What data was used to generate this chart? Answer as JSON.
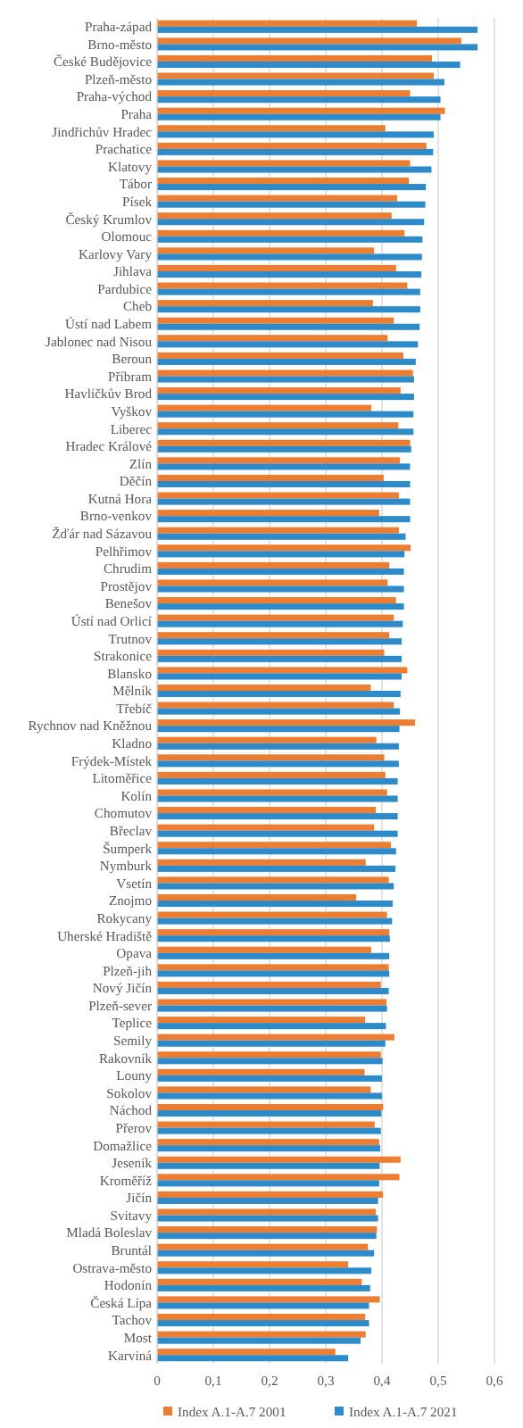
{
  "chart_data": {
    "type": "bar",
    "orientation": "horizontal",
    "categories": [
      "Praha-západ",
      "Brno-město",
      "České Budějovice",
      "Plzeň-město",
      "Praha-východ",
      "Praha",
      "Jindřichův Hradec",
      "Prachatice",
      "Klatovy",
      "Tábor",
      "Písek",
      "Český Krumlov",
      "Olomouc",
      "Karlovy Vary",
      "Jihlava",
      "Pardubice",
      "Cheb",
      "Ústí nad Labem",
      "Jablonec nad Nisou",
      "Beroun",
      "Příbram",
      "Havlíčkův Brod",
      "Vyškov",
      "Liberec",
      "Hradec Králové",
      "Zlín",
      "Děčín",
      "Kutná Hora",
      "Brno-venkov",
      "Žďár nad Sázavou",
      "Pelhřimov",
      "Chrudim",
      "Prostějov",
      "Benešov",
      "Ústí nad Orlicí",
      "Trutnov",
      "Strakonice",
      "Blansko",
      "Mělník",
      "Třebíč",
      "Rychnov nad Kněžnou",
      "Kladno",
      "Frýdek-Místek",
      "Litoměřice",
      "Kolín",
      "Chomutov",
      "Břeclav",
      "Šumperk",
      "Nymburk",
      "Vsetín",
      "Znojmo",
      "Rokycany",
      "Uherské Hradiště",
      "Opava",
      "Plzeň-jih",
      "Nový Jičín",
      "Plzeň-sever",
      "Teplice",
      "Semily",
      "Rakovník",
      "Louny",
      "Sokolov",
      "Náchod",
      "Přerov",
      "Domažlice",
      "Jeseník",
      "Kroměříž",
      "Jičín",
      "Svitavy",
      "Mladá Boleslav",
      "Bruntál",
      "Ostrava-město",
      "Hodonín",
      "Česká Lípa",
      "Tachov",
      "Most",
      "Karviná"
    ],
    "series": [
      {
        "name": "Index A.1-A.7 2001",
        "color": "#ed7d31",
        "values": [
          0.462,
          0.541,
          0.489,
          0.492,
          0.45,
          0.512,
          0.406,
          0.479,
          0.45,
          0.448,
          0.427,
          0.417,
          0.44,
          0.386,
          0.425,
          0.445,
          0.384,
          0.421,
          0.41,
          0.438,
          0.455,
          0.433,
          0.381,
          0.429,
          0.45,
          0.432,
          0.403,
          0.43,
          0.395,
          0.43,
          0.451,
          0.413,
          0.41,
          0.425,
          0.421,
          0.413,
          0.404,
          0.445,
          0.38,
          0.421,
          0.459,
          0.39,
          0.404,
          0.406,
          0.409,
          0.389,
          0.386,
          0.416,
          0.371,
          0.412,
          0.354,
          0.409,
          0.413,
          0.381,
          0.412,
          0.398,
          0.408,
          0.37,
          0.422,
          0.398,
          0.369,
          0.38,
          0.402,
          0.387,
          0.395,
          0.433,
          0.431,
          0.402,
          0.389,
          0.391,
          0.375,
          0.34,
          0.364,
          0.396,
          0.37,
          0.371,
          0.317
        ]
      },
      {
        "name": "Index A.1-A.7 2021",
        "color": "#2e8bc9",
        "values": [
          0.57,
          0.57,
          0.539,
          0.511,
          0.504,
          0.504,
          0.492,
          0.491,
          0.488,
          0.478,
          0.477,
          0.475,
          0.472,
          0.471,
          0.47,
          0.468,
          0.468,
          0.467,
          0.464,
          0.46,
          0.457,
          0.457,
          0.456,
          0.456,
          0.452,
          0.45,
          0.45,
          0.45,
          0.45,
          0.442,
          0.44,
          0.439,
          0.439,
          0.439,
          0.437,
          0.435,
          0.435,
          0.435,
          0.433,
          0.432,
          0.431,
          0.43,
          0.43,
          0.428,
          0.428,
          0.428,
          0.428,
          0.425,
          0.424,
          0.421,
          0.419,
          0.418,
          0.414,
          0.413,
          0.413,
          0.412,
          0.409,
          0.407,
          0.406,
          0.401,
          0.4,
          0.4,
          0.399,
          0.398,
          0.397,
          0.396,
          0.395,
          0.393,
          0.393,
          0.39,
          0.386,
          0.381,
          0.379,
          0.377,
          0.377,
          0.362,
          0.34
        ]
      }
    ],
    "xlim": [
      0,
      0.6
    ],
    "xticks": [
      0,
      {
        "value": 0.1,
        "label": "0,1"
      },
      {
        "value": 0.2,
        "label": "0,2"
      },
      {
        "value": 0.3,
        "label": "0,3"
      },
      {
        "value": 0.4,
        "label": "0,4"
      },
      {
        "value": 0.5,
        "label": "0,5"
      },
      {
        "value": 0.6,
        "label": "0,6"
      }
    ],
    "grid": "x",
    "legend": "bottom"
  }
}
